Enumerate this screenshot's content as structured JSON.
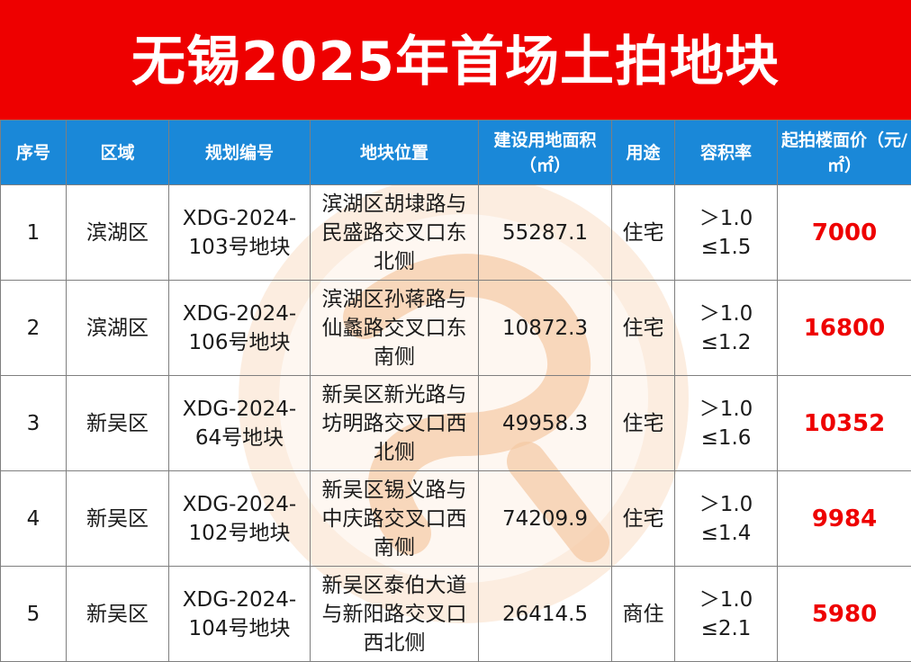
{
  "title": "无锡2025年首场土拍地块",
  "colors": {
    "title_bg": "#ee0000",
    "header_bg": "#1a88d8",
    "price_text": "#ee0000",
    "watermark": "#f7d9c0"
  },
  "table": {
    "headers": [
      "序号",
      "区域",
      "规划编号",
      "地块位置",
      "建设用地面积（㎡）",
      "用途",
      "容积率",
      "起拍楼面价（元/㎡）"
    ],
    "rows": [
      {
        "no": "1",
        "district": "滨湖区",
        "code": "XDG-2024-103号地块",
        "location": "滨湖区胡埭路与民盛路交叉口东北侧",
        "area": "55287.1",
        "use": "住宅",
        "far": "＞1.0 ≤1.5",
        "price": "7000"
      },
      {
        "no": "2",
        "district": "滨湖区",
        "code": "XDG-2024-106号地块",
        "location": "滨湖区孙蒋路与仙蠡路交叉口东南侧",
        "area": "10872.3",
        "use": "住宅",
        "far": "＞1.0 ≤1.2",
        "price": "16800"
      },
      {
        "no": "3",
        "district": "新吴区",
        "code": "XDG-2024-64号地块",
        "location": "新吴区新光路与坊明路交叉口西北侧",
        "area": "49958.3",
        "use": "住宅",
        "far": "＞1.0 ≤1.6",
        "price": "10352"
      },
      {
        "no": "4",
        "district": "新吴区",
        "code": "XDG-2024-102号地块",
        "location": "新吴区锡义路与中庆路交叉口西南侧",
        "area": "74209.9",
        "use": "住宅",
        "far": "＞1.0 ≤1.4",
        "price": "9984"
      },
      {
        "no": "5",
        "district": "新吴区",
        "code": "XDG-2024-104号地块",
        "location": "新吴区泰伯大道与新阳路交叉口西北侧",
        "area": "26414.5",
        "use": "商住",
        "far": "＞1.0 ≤2.1",
        "price": "5980"
      }
    ]
  }
}
